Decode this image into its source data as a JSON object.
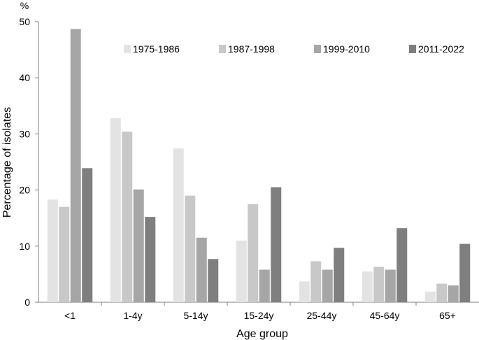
{
  "chart_data": {
    "type": "bar",
    "unit_label": "%",
    "xlabel": "Age group",
    "ylabel": "Percentage of isolates",
    "ylim": [
      0,
      50
    ],
    "yticks": [
      0,
      10,
      20,
      30,
      40,
      50
    ],
    "categories": [
      "<1",
      "1-4y",
      "5-14y",
      "15-24y",
      "25-44y",
      "45-64y",
      "65+"
    ],
    "legend_position": "top-right",
    "grid": false,
    "series": [
      {
        "name": "1975-1986",
        "color": "#e3e3e3",
        "values": [
          18.3,
          32.8,
          27.4,
          11.0,
          3.7,
          5.5,
          1.9
        ]
      },
      {
        "name": "1987-1998",
        "color": "#c8c8c8",
        "values": [
          17.0,
          30.4,
          19.0,
          17.5,
          7.3,
          6.3,
          3.3
        ]
      },
      {
        "name": "1999-2010",
        "color": "#a6a6a6",
        "values": [
          48.7,
          20.1,
          11.5,
          5.8,
          5.8,
          5.8,
          3.0
        ]
      },
      {
        "name": "2011-2022",
        "color": "#7f7f7f",
        "values": [
          23.9,
          15.2,
          7.7,
          20.5,
          9.7,
          13.2,
          10.4
        ]
      }
    ]
  }
}
